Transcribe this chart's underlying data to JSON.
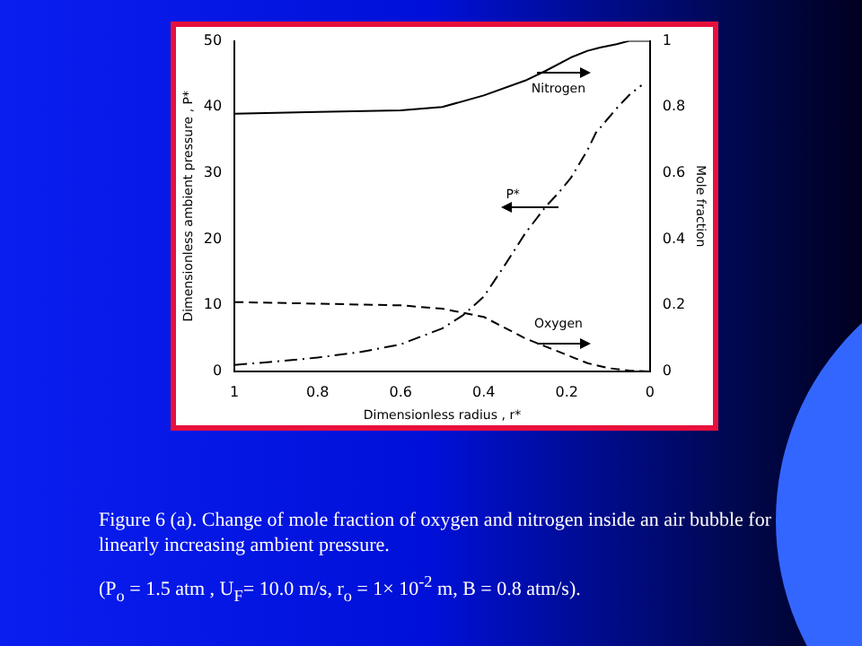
{
  "chart_data": {
    "type": "line",
    "xlabel": "Dimensionless radius , r*",
    "ylabel": "Dimensionless ambient pressure , P*",
    "y2label": "Mole fraction",
    "xlim": [
      1,
      0
    ],
    "xticks": [
      1,
      0.8,
      0.6,
      0.4,
      0.2,
      0
    ],
    "ylim": [
      0,
      50
    ],
    "yticks": [
      0,
      10,
      20,
      30,
      40,
      50
    ],
    "y2lim": [
      0,
      1
    ],
    "y2ticks": [
      0,
      0.2,
      0.4,
      0.6,
      0.8,
      1
    ],
    "grid": false,
    "legend": false,
    "marker": "none",
    "series": [
      {
        "color": "#000000",
        "axis": "y2",
        "line_style": "solid",
        "x": [
          1,
          0.8,
          0.6,
          0.5,
          0.4,
          0.3,
          0.25,
          0.19,
          0.15,
          0.12,
          0.08,
          0.05,
          0
        ],
        "values": [
          0.78,
          0.785,
          0.79,
          0.8,
          0.835,
          0.88,
          0.91,
          0.95,
          0.97,
          0.98,
          0.99,
          1,
          1
        ]
      },
      {
        "color": "#000000",
        "axis": "y2",
        "line_style": "dashed",
        "x": [
          1,
          0.8,
          0.6,
          0.5,
          0.4,
          0.3,
          0.25,
          0.2,
          0.15,
          0.1,
          0.05,
          0
        ],
        "values": [
          0.21,
          0.205,
          0.2,
          0.19,
          0.165,
          0.1,
          0.075,
          0.05,
          0.025,
          0.01,
          0.003,
          0
        ]
      },
      {
        "color": "#000000",
        "axis": "y",
        "line_style": "dashdot",
        "x": [
          1,
          0.9,
          0.8,
          0.7,
          0.6,
          0.5,
          0.45,
          0.4,
          0.35,
          0.3,
          0.25,
          0.22,
          0.19,
          0.15,
          0.13,
          0.08,
          0.05,
          0.02
        ],
        "values": [
          1,
          1.5,
          2.1,
          2.9,
          4.1,
          6.5,
          8.5,
          11.3,
          16,
          20.9,
          25,
          27,
          29.3,
          33.5,
          36.1,
          39.8,
          41.8,
          43.3
        ]
      }
    ],
    "annotations": [
      "Nitrogen",
      "P*",
      "Oxygen",
      "Figure 6 (a). Change of mole fraction of oxygen and nitrogen inside an air bubble for linearly increasing ambient pressure.",
      "(P$_{o}$ = 1.5 atm , U$_{F}$= 10.0 m/s, r$_{o}$ = 1× 10$^{-2}$ m, B = 0.8 atm/s)."
    ]
  }
}
